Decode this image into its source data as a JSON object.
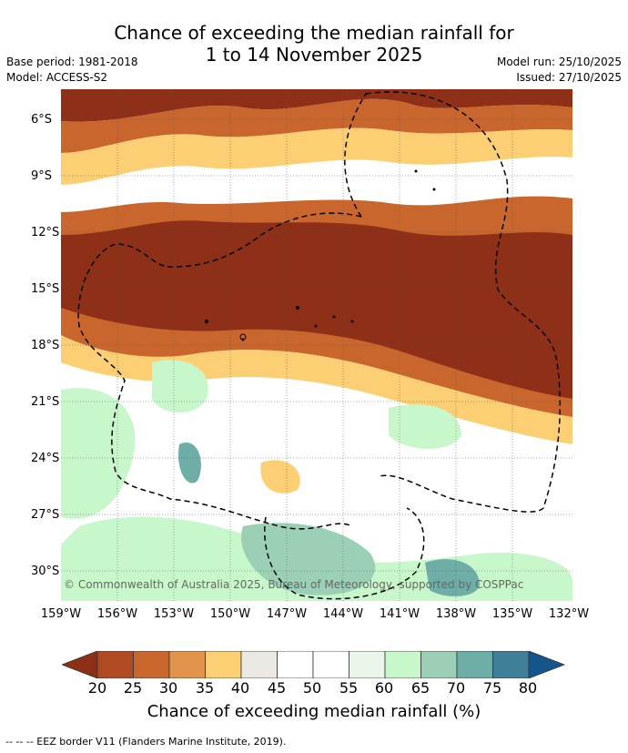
{
  "title_line1": "Chance of exceeding the median rainfall for",
  "title_line2": "1 to 14 November 2025",
  "base_period": "Base period: 1981-2018",
  "model": "Model: ACCESS-S2",
  "model_run": "Model run: 25/10/2025",
  "issued": "Issued: 27/10/2025",
  "lat_labels": [
    "6°S",
    "9°S",
    "12°S",
    "15°S",
    "18°S",
    "21°S",
    "24°S",
    "27°S",
    "30°S"
  ],
  "lon_labels": [
    "159°W",
    "156°W",
    "153°W",
    "150°W",
    "147°W",
    "144°W",
    "141°W",
    "138°W",
    "135°W",
    "132°W"
  ],
  "copyright": "© Commonwealth of Australia 2025, Bureau of Meteorology, supported by COSPPac",
  "colorbar": {
    "labels": [
      "20",
      "25",
      "30",
      "35",
      "40",
      "45",
      "50",
      "55",
      "60",
      "65",
      "70",
      "75",
      "80"
    ],
    "colors": [
      "#8e2f18",
      "#b04a22",
      "#c8662e",
      "#e2944a",
      "#fdcf74",
      "#ece8e4",
      "#ffffff",
      "#ffffff",
      "#e9f6e9",
      "#c9f7cc",
      "#9bd0b6",
      "#6faea6",
      "#3f7f9a",
      "#16548c"
    ],
    "title": "Chance of exceeding median rainfall (%)"
  },
  "footnote": "--  --  -- EEZ border V11 (Flanders Marine Institute, 2019)."
}
